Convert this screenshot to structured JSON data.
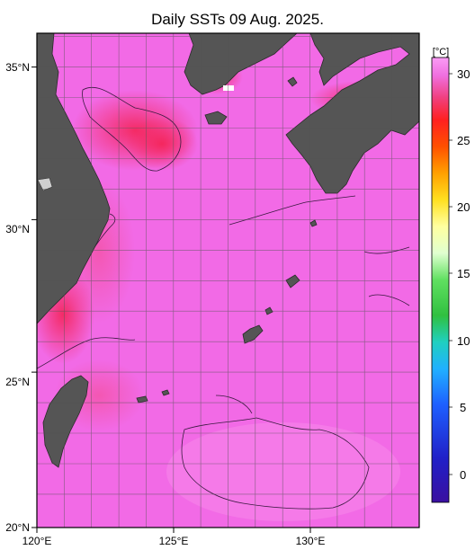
{
  "title": "Daily SSTs 09 Aug. 2025.",
  "axes": {
    "lon_labels": [
      "120°E",
      "125°E",
      "130°E"
    ],
    "lat_labels": [
      "35°N",
      "30°N",
      "25°N",
      "20°N"
    ]
  },
  "colorbar": {
    "unit": "[°C]",
    "ticks": [
      "30",
      "25",
      "20",
      "15",
      "10",
      "5",
      "0"
    ],
    "range": [
      -2,
      32
    ]
  },
  "map": {
    "lon_range": [
      120,
      134
    ],
    "lat_range": [
      20,
      36.2
    ],
    "sea_color": "#f06ae8",
    "land_color": "#555555"
  }
}
